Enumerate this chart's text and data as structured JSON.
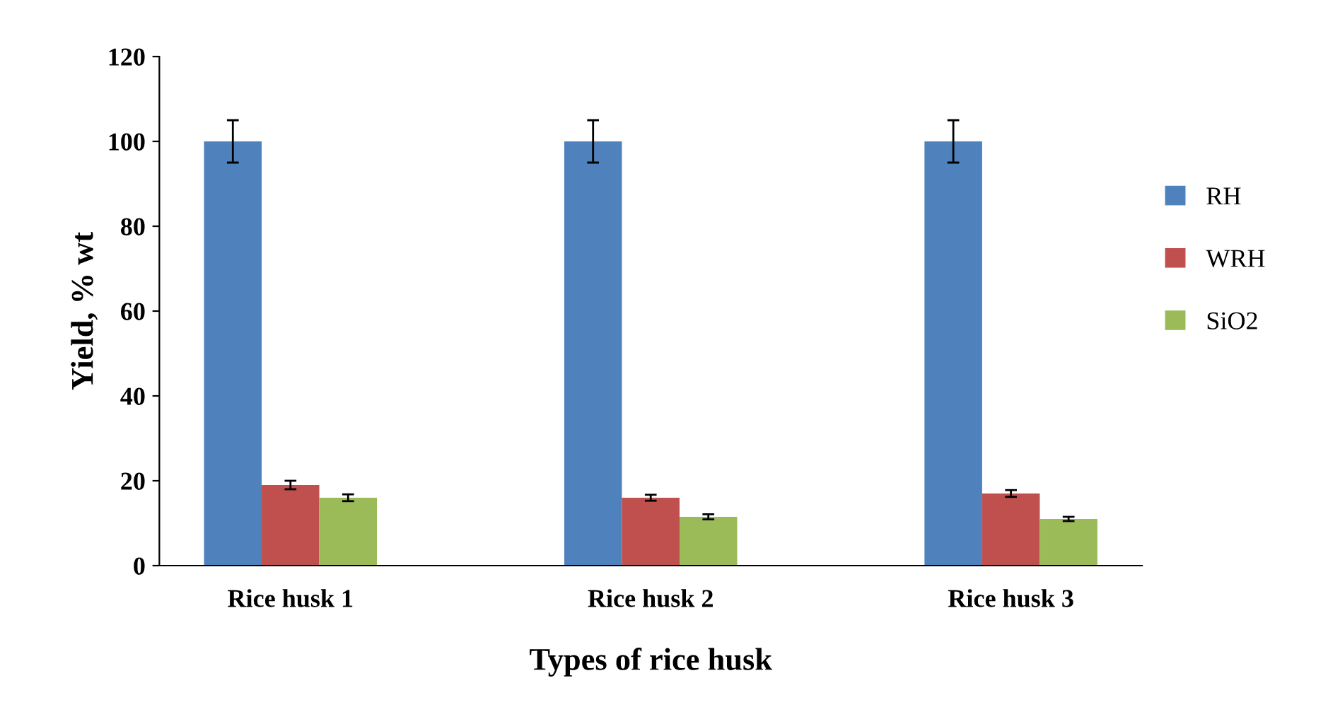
{
  "chart_data": {
    "type": "bar",
    "xlabel": "Types of rice husk",
    "ylabel": "Yield, % wt",
    "categories": [
      "Rice husk 1",
      "Rice husk 2",
      "Rice husk 3"
    ],
    "series": [
      {
        "name": "RH",
        "color": "#4f81bd",
        "values": [
          100,
          100,
          100
        ],
        "errors": [
          5,
          5,
          5
        ]
      },
      {
        "name": "WRH",
        "color": "#c0504d",
        "values": [
          19,
          16,
          17
        ],
        "errors": [
          1,
          0.7,
          0.8
        ]
      },
      {
        "name": "SiO2",
        "color": "#9bbb59",
        "values": [
          16,
          11.5,
          11
        ],
        "errors": [
          0.8,
          0.6,
          0.5
        ]
      }
    ],
    "ylim": [
      0,
      120
    ],
    "yticks": [
      0,
      20,
      40,
      60,
      80,
      100,
      120
    ],
    "grid": false,
    "legend": "right"
  }
}
